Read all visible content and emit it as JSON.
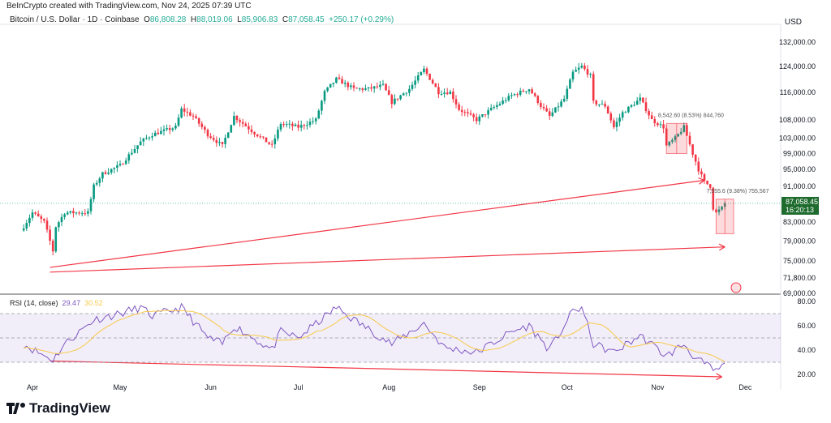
{
  "header": {
    "credit": "BeInCrypto created with TradingView.com, Nov 24, 2025 07:39 UTC",
    "symbol": "Bitcoin / U.S. Dollar · 1D · Coinbase",
    "o_label": "O",
    "o": "86,808.28",
    "h_label": "H",
    "h": "88,019.06",
    "l_label": "L",
    "l": "85,906.83",
    "c_label": "C",
    "c": "87,058.45",
    "change": "+250.17 (+0.29%)"
  },
  "currency": "USD",
  "last_price": {
    "value": "87,058.45",
    "countdown": "16:20:13",
    "color": "#1e6b2e"
  },
  "rsi_label": {
    "name": "RSI (14, close)",
    "value": "29.47",
    "ma": "30.52"
  },
  "brand": "TradingView",
  "colors": {
    "up": "#089981",
    "down": "#f23645",
    "rsi": "#7e57c2",
    "rsi_ma": "#f7c948",
    "annotation": "#f23645"
  },
  "chart_data": {
    "type": "candlestick",
    "price_scale": "log",
    "ylim": [
      69000,
      132000
    ],
    "price_ticks": [
      "132,000.00",
      "124,000.00",
      "116,000.00",
      "108,000.00",
      "103,000.00",
      "99,000.00",
      "95,000.00",
      "91,000.00",
      "83,000.00",
      "79,000.00",
      "75,000.00",
      "71,800.00",
      "69,000.00"
    ],
    "x_ticks": [
      "Apr",
      "May",
      "Jun",
      "Jul",
      "Aug",
      "Sep",
      "Oct",
      "Nov",
      "Dec"
    ],
    "close_path": [
      [
        "2025-03-29",
        82000
      ],
      [
        "2025-04-01",
        85000
      ],
      [
        "2025-04-05",
        83000
      ],
      [
        "2025-04-08",
        77000
      ],
      [
        "2025-04-09",
        82000
      ],
      [
        "2025-04-12",
        85000
      ],
      [
        "2025-04-20",
        85000
      ],
      [
        "2025-04-22",
        91000
      ],
      [
        "2025-04-25",
        94000
      ],
      [
        "2025-05-01",
        96000
      ],
      [
        "2025-05-08",
        102000
      ],
      [
        "2025-05-12",
        104000
      ],
      [
        "2025-05-20",
        106000
      ],
      [
        "2025-05-22",
        111000
      ],
      [
        "2025-05-26",
        109000
      ],
      [
        "2025-05-31",
        104000
      ],
      [
        "2025-06-05",
        101000
      ],
      [
        "2025-06-09",
        109000
      ],
      [
        "2025-06-15",
        105000
      ],
      [
        "2025-06-22",
        101000
      ],
      [
        "2025-06-25",
        107000
      ],
      [
        "2025-07-01",
        106000
      ],
      [
        "2025-07-07",
        108000
      ],
      [
        "2025-07-10",
        116000
      ],
      [
        "2025-07-14",
        120000
      ],
      [
        "2025-07-20",
        117000
      ],
      [
        "2025-07-25",
        117000
      ],
      [
        "2025-07-30",
        118000
      ],
      [
        "2025-08-02",
        113000
      ],
      [
        "2025-08-08",
        117000
      ],
      [
        "2025-08-13",
        123000
      ],
      [
        "2025-08-18",
        116000
      ],
      [
        "2025-08-22",
        116000
      ],
      [
        "2025-08-25",
        111000
      ],
      [
        "2025-08-31",
        108000
      ],
      [
        "2025-09-05",
        111000
      ],
      [
        "2025-09-12",
        115000
      ],
      [
        "2025-09-18",
        117000
      ],
      [
        "2025-09-22",
        112000
      ],
      [
        "2025-09-25",
        109000
      ],
      [
        "2025-09-30",
        114000
      ],
      [
        "2025-10-03",
        122000
      ],
      [
        "2025-10-06",
        124000
      ],
      [
        "2025-10-09",
        121000
      ],
      [
        "2025-10-10",
        113000
      ],
      [
        "2025-10-14",
        112000
      ],
      [
        "2025-10-17",
        106000
      ],
      [
        "2025-10-20",
        110000
      ],
      [
        "2025-10-26",
        114000
      ],
      [
        "2025-10-30",
        108000
      ],
      [
        "2025-11-03",
        106000
      ],
      [
        "2025-11-04",
        101000
      ],
      [
        "2025-11-07",
        103000
      ],
      [
        "2025-11-10",
        106000
      ],
      [
        "2025-11-13",
        99000
      ],
      [
        "2025-11-15",
        95000
      ],
      [
        "2025-11-17",
        92000
      ],
      [
        "2025-11-19",
        91000
      ],
      [
        "2025-11-20",
        86000
      ],
      [
        "2025-11-21",
        85000
      ],
      [
        "2025-11-23",
        86000
      ],
      [
        "2025-11-24",
        87058
      ]
    ],
    "rsi": {
      "ylim": [
        15,
        85
      ],
      "ticks": [
        "80.00",
        "60.00",
        "40.00",
        "20.00"
      ],
      "band": [
        30,
        70
      ],
      "path": [
        [
          "2025-03-29",
          45
        ],
        [
          "2025-04-03",
          38
        ],
        [
          "2025-04-08",
          32
        ],
        [
          "2025-04-12",
          45
        ],
        [
          "2025-04-22",
          65
        ],
        [
          "2025-05-01",
          70
        ],
        [
          "2025-05-08",
          75
        ],
        [
          "2025-05-12",
          68
        ],
        [
          "2025-05-22",
          75
        ],
        [
          "2025-05-31",
          50
        ],
        [
          "2025-06-05",
          45
        ],
        [
          "2025-06-09",
          60
        ],
        [
          "2025-06-22",
          40
        ],
        [
          "2025-06-25",
          55
        ],
        [
          "2025-07-01",
          50
        ],
        [
          "2025-07-14",
          75
        ],
        [
          "2025-07-20",
          65
        ],
        [
          "2025-08-02",
          45
        ],
        [
          "2025-08-13",
          62
        ],
        [
          "2025-08-20",
          42
        ],
        [
          "2025-08-31",
          38
        ],
        [
          "2025-09-12",
          55
        ],
        [
          "2025-09-18",
          60
        ],
        [
          "2025-09-25",
          40
        ],
        [
          "2025-10-03",
          72
        ],
        [
          "2025-10-06",
          75
        ],
        [
          "2025-10-10",
          45
        ],
        [
          "2025-10-17",
          38
        ],
        [
          "2025-10-26",
          52
        ],
        [
          "2025-11-04",
          35
        ],
        [
          "2025-11-10",
          45
        ],
        [
          "2025-11-14",
          33
        ],
        [
          "2025-11-20",
          24
        ],
        [
          "2025-11-21",
          22
        ],
        [
          "2025-11-24",
          29.47
        ]
      ]
    },
    "annotations": {
      "trendlines": [
        {
          "from": [
            "2025-04-07",
            73800
          ],
          "to": [
            "2025-11-17",
            92400
          ]
        },
        {
          "from": [
            "2025-04-07",
            72900
          ],
          "to": [
            "2025-11-24",
            77800
          ]
        }
      ],
      "rsi_trendline": {
        "from": [
          "2025-04-07",
          31
        ],
        "to": [
          "2025-11-23",
          18
        ]
      },
      "ranges": [
        {
          "from": [
            "2025-11-04",
            107000
          ],
          "to": [
            "2025-11-11",
            99000
          ],
          "label": "8,542.60 (8.53%) 844,760"
        },
        {
          "from": [
            "2025-11-21",
            88000
          ],
          "to": [
            "2025-11-27",
            80500
          ],
          "label": "7,555.6 (9.38%) 755,567"
        }
      ]
    }
  }
}
